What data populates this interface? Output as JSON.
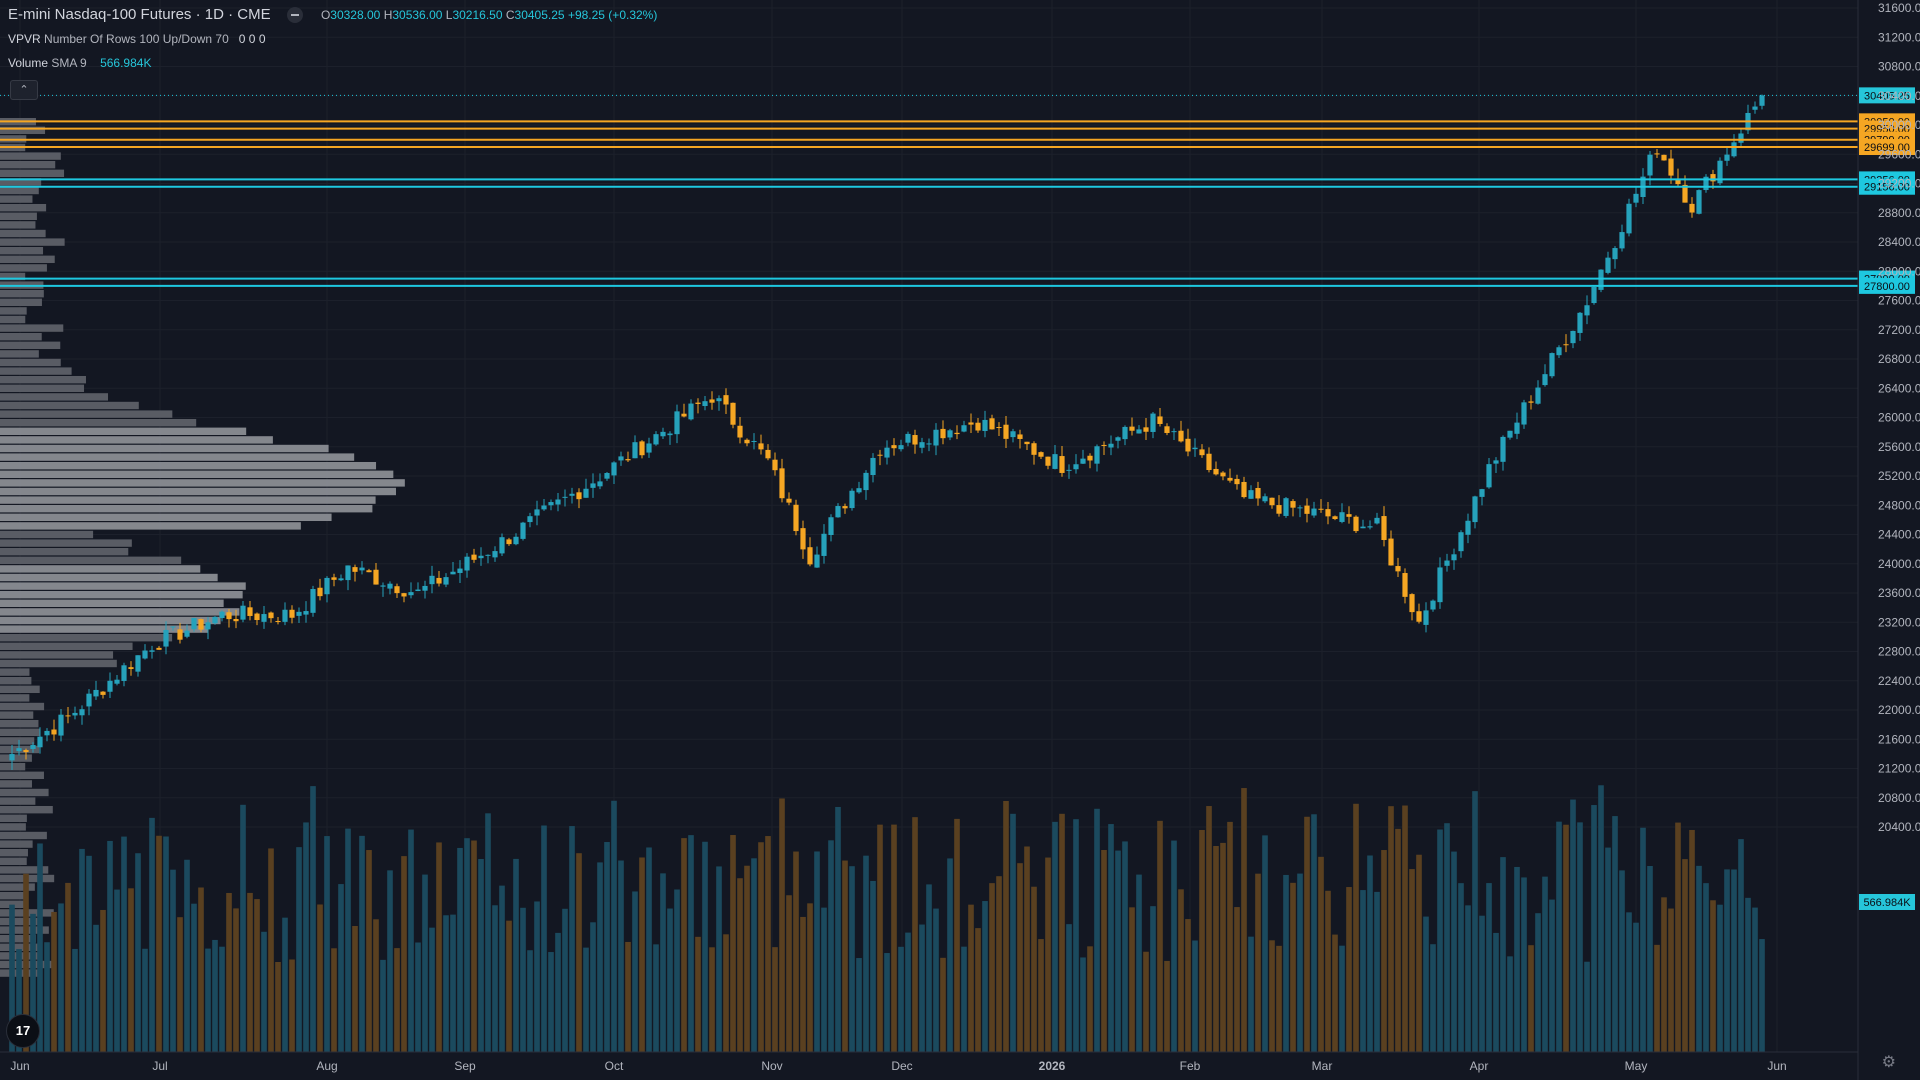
{
  "header": {
    "symbol": "E-mini Nasdaq-100 Futures · 1D · CME",
    "o_label": "O",
    "o_val": "30328.00",
    "h_label": "H",
    "h_val": "30536.00",
    "l_label": "L",
    "l_val": "30216.50",
    "c_label": "C",
    "c_val": "30405.25",
    "change": "+98.25 (+0.32%)"
  },
  "indicators": {
    "vpvr_name": "VPVR",
    "vpvr_params": "Number Of Rows 100 Up/Down 70",
    "vpvr_values": "0  0  0",
    "vol_name": "Volume",
    "vol_params": "SMA 9",
    "vol_value": "566.984K",
    "collapse_icon": "chevron-up-icon"
  },
  "colors": {
    "up": "#26a2bb",
    "down": "#f5a623",
    "bg": "#131722",
    "cyan_line": "#1ec8e0",
    "orange_line": "#f5a623",
    "vol_up": "#1b4a5e",
    "vol_down": "#5a4020"
  },
  "chart_data": {
    "type": "candlestick",
    "title": "E-mini Nasdaq-100 Futures · 1D · CME",
    "y_range": [
      20100,
      31700
    ],
    "y_ticks": [
      31600,
      31200,
      30800,
      30400,
      30000,
      29600,
      29200,
      28800,
      28400,
      28000,
      27600,
      27200,
      26800,
      26400,
      26000,
      25600,
      25200,
      24800,
      24400,
      24000,
      23600,
      23200,
      22800,
      22400,
      22000,
      21600,
      21200,
      20800,
      20400
    ],
    "x_labels": [
      "Jun",
      "Jul",
      "Aug",
      "Sep",
      "Oct",
      "Nov",
      "Dec",
      "2026",
      "Feb",
      "Mar",
      "Apr",
      "May",
      "Jun"
    ],
    "waypoints": [
      [
        0,
        21400
      ],
      [
        8,
        21900
      ],
      [
        20,
        22900
      ],
      [
        30,
        23300
      ],
      [
        40,
        23300
      ],
      [
        48,
        23950
      ],
      [
        58,
        23600
      ],
      [
        70,
        24300
      ],
      [
        84,
        25200
      ],
      [
        100,
        26300
      ],
      [
        108,
        25400
      ],
      [
        114,
        24100
      ],
      [
        124,
        25600
      ],
      [
        138,
        25950
      ],
      [
        150,
        25350
      ],
      [
        163,
        25950
      ],
      [
        176,
        24900
      ],
      [
        195,
        24500
      ],
      [
        201,
        23200
      ],
      [
        211,
        25300
      ],
      [
        225,
        27600
      ],
      [
        235,
        29700
      ],
      [
        240,
        28900
      ],
      [
        250,
        30405
      ]
    ],
    "price_levels": [
      {
        "value": 30405.25,
        "label": "30405.25",
        "style": "last"
      },
      {
        "value": 30050,
        "label": "30050.00",
        "style": "orange"
      },
      {
        "value": 29950,
        "label": "29950.00",
        "style": "orange"
      },
      {
        "value": 29799,
        "label": "29799.00",
        "style": "orange"
      },
      {
        "value": 29699,
        "label": "29699.00",
        "style": "orange"
      },
      {
        "value": 29256,
        "label": "29256.00",
        "style": "cyan"
      },
      {
        "value": 29156,
        "label": "29156.00",
        "style": "cyan"
      },
      {
        "value": 27900,
        "label": "27900.00",
        "style": "cyan"
      },
      {
        "value": 27800,
        "label": "27800.00",
        "style": "cyan"
      }
    ],
    "volume_sma_label": "566.984K"
  }
}
